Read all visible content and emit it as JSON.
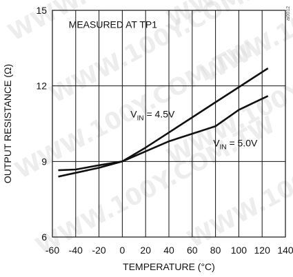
{
  "chart_data": {
    "type": "line",
    "title": "",
    "xlabel": "TEMPERATURE (°C)",
    "ylabel": "OUTPUT RESISTANCE (Ω)",
    "xlim": [
      -60,
      140
    ],
    "ylim": [
      6,
      15
    ],
    "xticks": [
      -60,
      -40,
      -20,
      0,
      20,
      40,
      60,
      80,
      100,
      120,
      140
    ],
    "yticks": [
      6,
      9,
      12,
      15
    ],
    "grid": true,
    "annotations": [
      {
        "text": "MEASURED AT TP1"
      },
      {
        "text": "V_IN = 4.5V",
        "main": "V",
        "sub": "IN",
        "rest": " = 4.5V"
      },
      {
        "text": "V_IN = 5.0V",
        "main": "V",
        "sub": "IN",
        "rest": " = 5.0V"
      }
    ],
    "series": [
      {
        "name": "V_IN = 4.5V",
        "x": [
          -55,
          -40,
          -20,
          0,
          20,
          40,
          60,
          80,
          100,
          125
        ],
        "y": [
          8.4,
          8.55,
          8.75,
          9.0,
          9.55,
          10.15,
          10.75,
          11.35,
          11.95,
          12.7
        ]
      },
      {
        "name": "V_IN = 5.0V",
        "x": [
          -55,
          -40,
          -20,
          0,
          20,
          40,
          60,
          80,
          100,
          125
        ],
        "y": [
          8.65,
          8.68,
          8.85,
          9.0,
          9.4,
          9.8,
          10.1,
          10.4,
          11.05,
          11.6
        ]
      }
    ]
  },
  "watermark": "WWW.100Y.COM.TW",
  "corner_code": "ai0012"
}
